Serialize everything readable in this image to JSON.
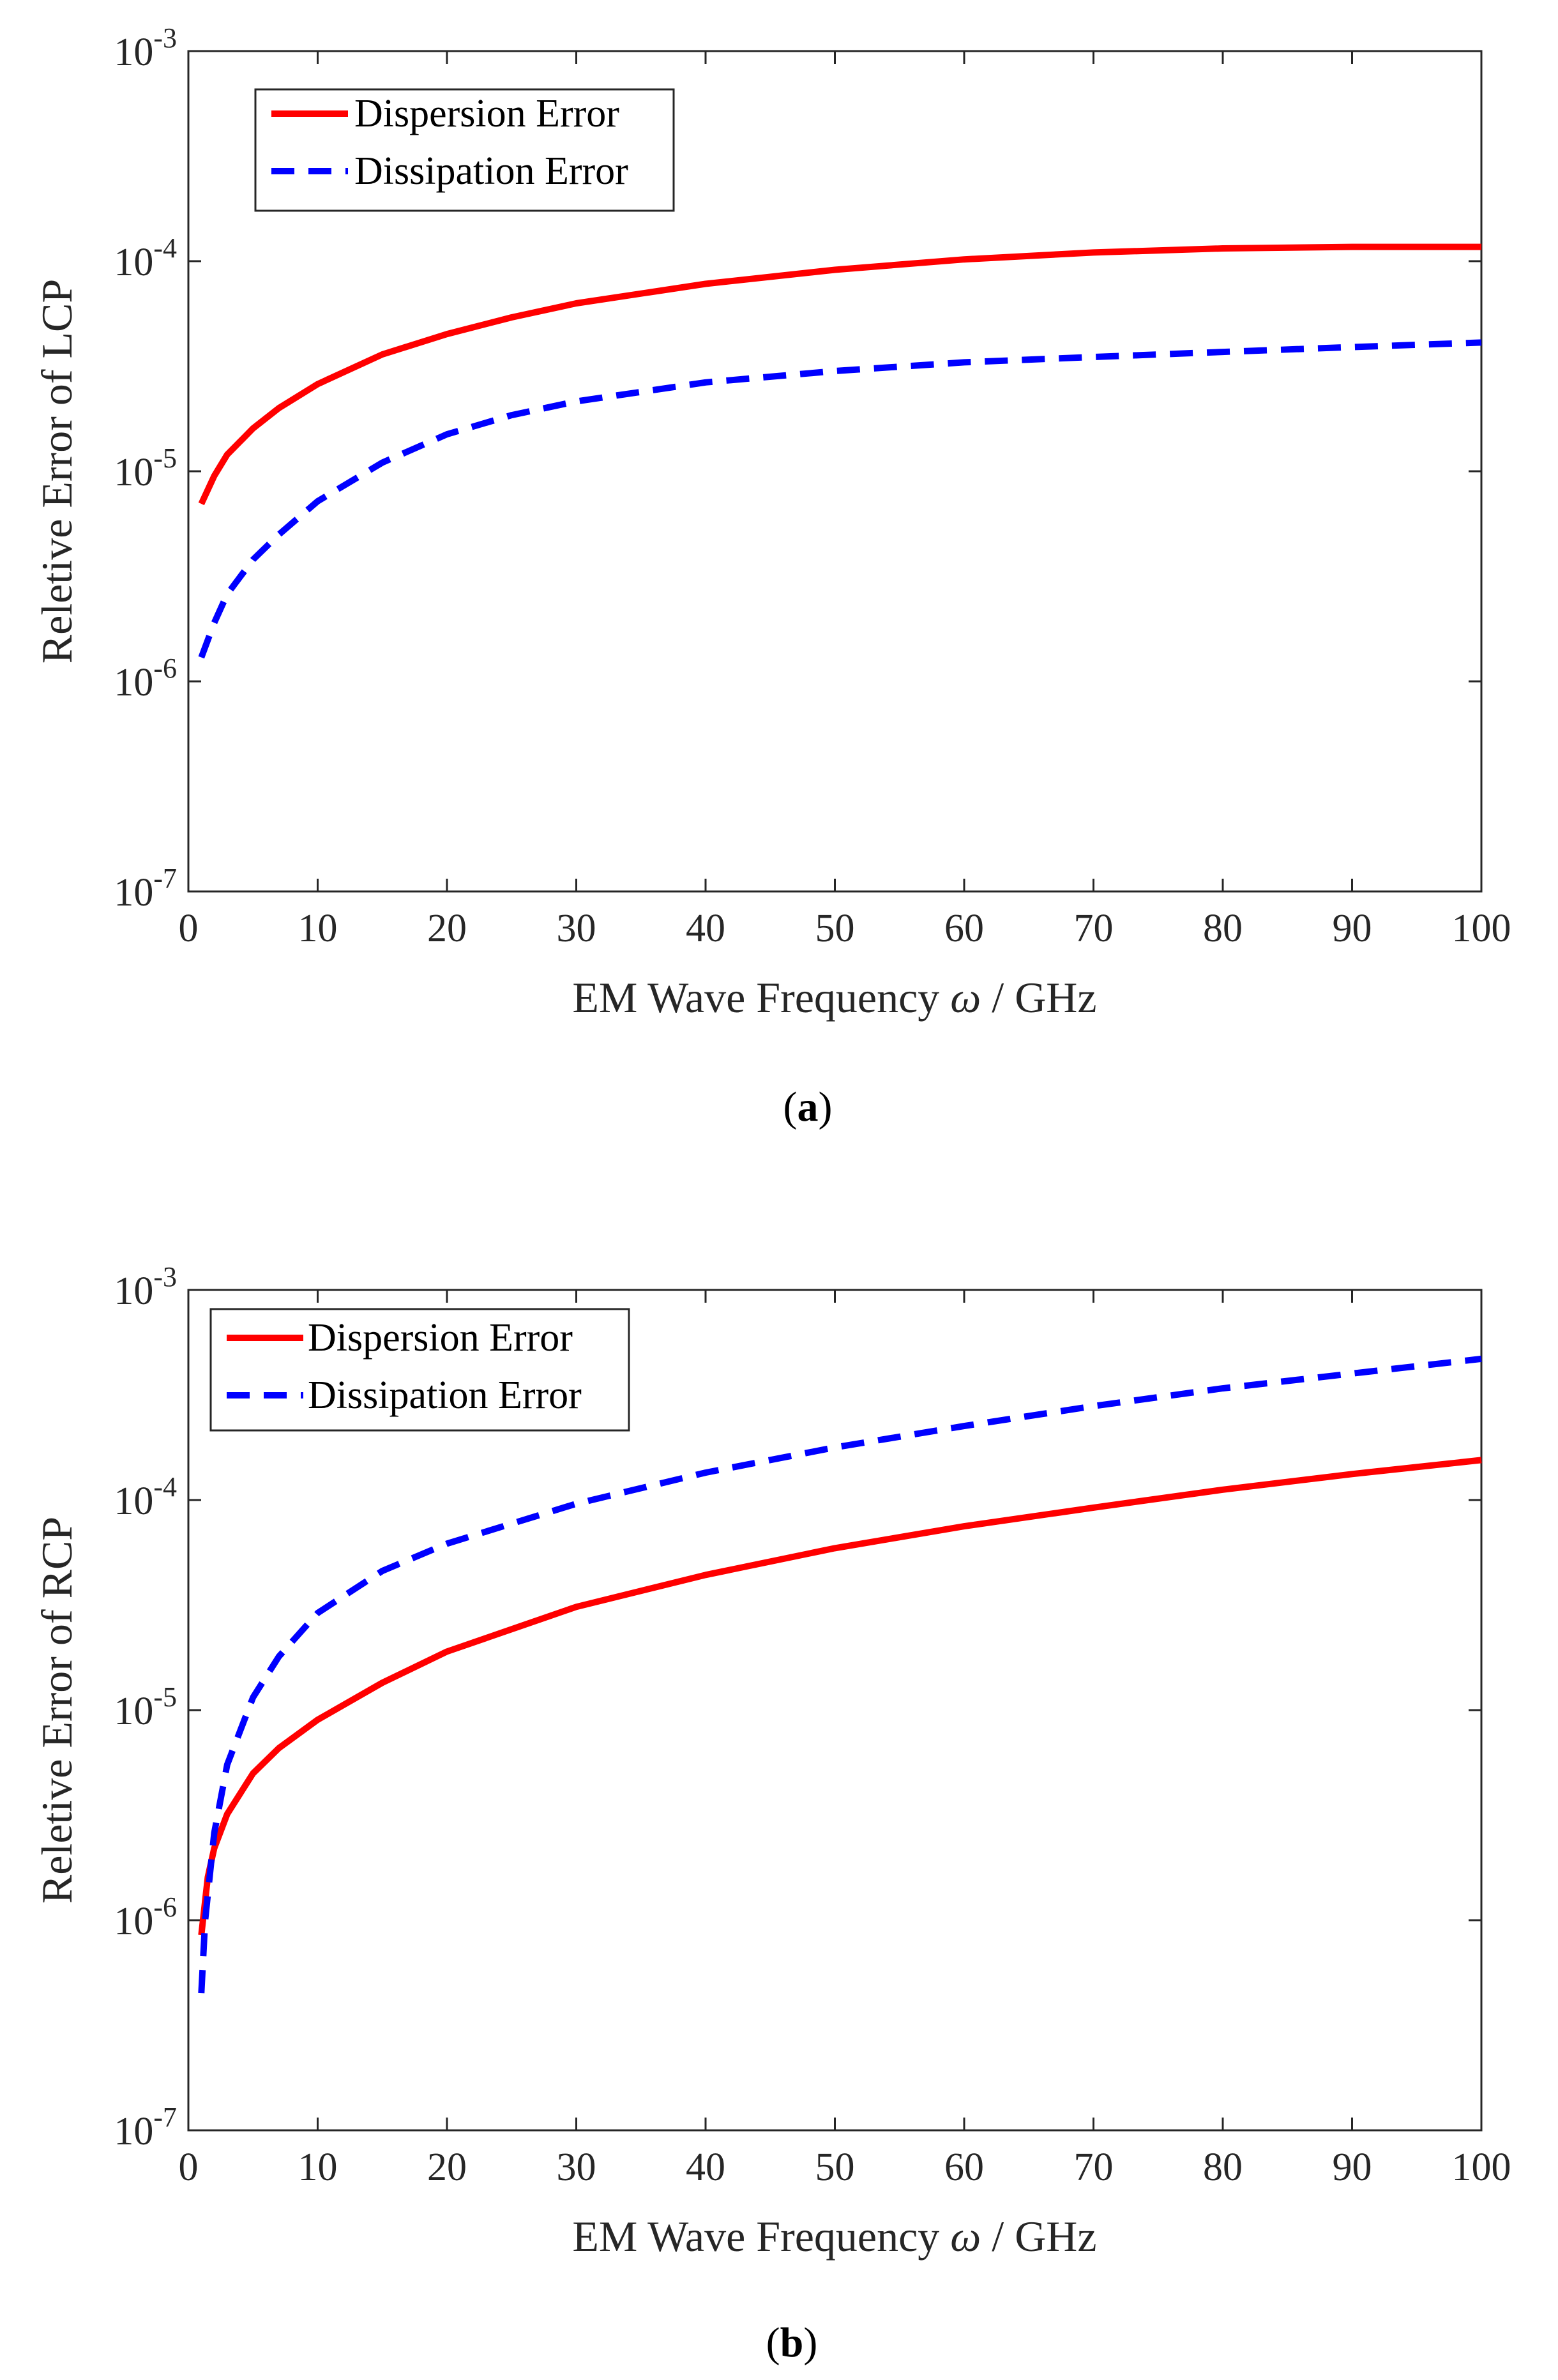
{
  "colors": {
    "dispersion": "#ff0000",
    "dissipation": "#0000ff"
  },
  "chart_data": [
    {
      "type": "line",
      "panel_label": "a",
      "xlabel_prefix": "EM Wave Frequency ",
      "xlabel_symbol": "ω",
      "xlabel_suffix": " / GHz",
      "ylabel": "Reletive Error of LCP",
      "yscale": "log",
      "xlim": [
        0,
        100
      ],
      "ylim_exponents": [
        -7,
        -3
      ],
      "xticks": [
        0,
        10,
        20,
        30,
        40,
        50,
        60,
        70,
        80,
        90,
        100
      ],
      "xtick_labels": [
        "0",
        "10",
        "20",
        "30",
        "40",
        "50",
        "60",
        "70",
        "80",
        "90",
        "100"
      ],
      "ytick_exponents": [
        -3,
        -4,
        -5,
        -6,
        -7
      ],
      "ytick_base": "10",
      "ytick_sup": [
        "-3",
        "-4",
        "-5",
        "-6",
        "-7"
      ],
      "legend": {
        "location": "top-left",
        "entries": [
          "Dispersion Error",
          "Dissipation Error"
        ]
      },
      "series": [
        {
          "name": "Dispersion Error",
          "style": "solid",
          "x": [
            1,
            2,
            3,
            5,
            7,
            10,
            15,
            20,
            25,
            30,
            40,
            50,
            60,
            70,
            80,
            90,
            100
          ],
          "y": [
            7e-06,
            9.5e-06,
            1.2e-05,
            1.6e-05,
            2e-05,
            2.6e-05,
            3.6e-05,
            4.5e-05,
            5.4e-05,
            6.3e-05,
            7.8e-05,
            9.1e-05,
            0.000102,
            0.00011,
            0.000115,
            0.000117,
            0.000117
          ]
        },
        {
          "name": "Dissipation Error",
          "style": "dashed",
          "x": [
            1,
            2,
            3,
            5,
            7,
            10,
            15,
            20,
            25,
            30,
            40,
            50,
            60,
            70,
            80,
            90,
            100
          ],
          "y": [
            1.3e-06,
            1.9e-06,
            2.6e-06,
            3.8e-06,
            5e-06,
            7.2e-06,
            1.1e-05,
            1.5e-05,
            1.85e-05,
            2.15e-05,
            2.65e-05,
            3e-05,
            3.3e-05,
            3.5e-05,
            3.7e-05,
            3.9e-05,
            4.1e-05
          ]
        }
      ]
    },
    {
      "type": "line",
      "panel_label": "b",
      "xlabel_prefix": "EM Wave Frequency ",
      "xlabel_symbol": "ω",
      "xlabel_suffix": " / GHz",
      "ylabel": "Reletive Error of RCP",
      "yscale": "log",
      "xlim": [
        0,
        100
      ],
      "ylim_exponents": [
        -7,
        -3
      ],
      "xticks": [
        0,
        10,
        20,
        30,
        40,
        50,
        60,
        70,
        80,
        90,
        100
      ],
      "xtick_labels": [
        "0",
        "10",
        "20",
        "30",
        "40",
        "50",
        "60",
        "70",
        "80",
        "90",
        "100"
      ],
      "ytick_exponents": [
        -3,
        -4,
        -5,
        -6,
        -7
      ],
      "ytick_base": "10",
      "ytick_sup": [
        "-3",
        "-4",
        "-5",
        "-6",
        "-7"
      ],
      "legend": {
        "location": "top-left",
        "entries": [
          "Dispersion Error",
          "Dissipation Error"
        ]
      },
      "series": [
        {
          "name": "Dispersion Error",
          "style": "solid",
          "x": [
            1,
            1.5,
            2,
            3,
            5,
            7,
            10,
            15,
            20,
            30,
            40,
            50,
            60,
            70,
            80,
            90,
            100
          ],
          "y": [
            8.5e-07,
            1.6e-06,
            2.2e-06,
            3.2e-06,
            5e-06,
            6.6e-06,
            9e-06,
            1.35e-05,
            1.9e-05,
            3.1e-05,
            4.4e-05,
            5.9e-05,
            7.5e-05,
            9.2e-05,
            0.000112,
            0.000133,
            0.000155
          ]
        },
        {
          "name": "Dissipation Error",
          "style": "dashed",
          "x": [
            1,
            1.3,
            2,
            3,
            5,
            7,
            10,
            15,
            20,
            30,
            40,
            50,
            60,
            70,
            80,
            90,
            100
          ],
          "y": [
            4.5e-07,
            1e-06,
            2.6e-06,
            5.5e-06,
            1.15e-05,
            1.8e-05,
            2.9e-05,
            4.6e-05,
            6.2e-05,
            9.6e-05,
            0.000135,
            0.000178,
            0.000225,
            0.00028,
            0.00034,
            0.0004,
            0.00047
          ]
        }
      ]
    }
  ]
}
